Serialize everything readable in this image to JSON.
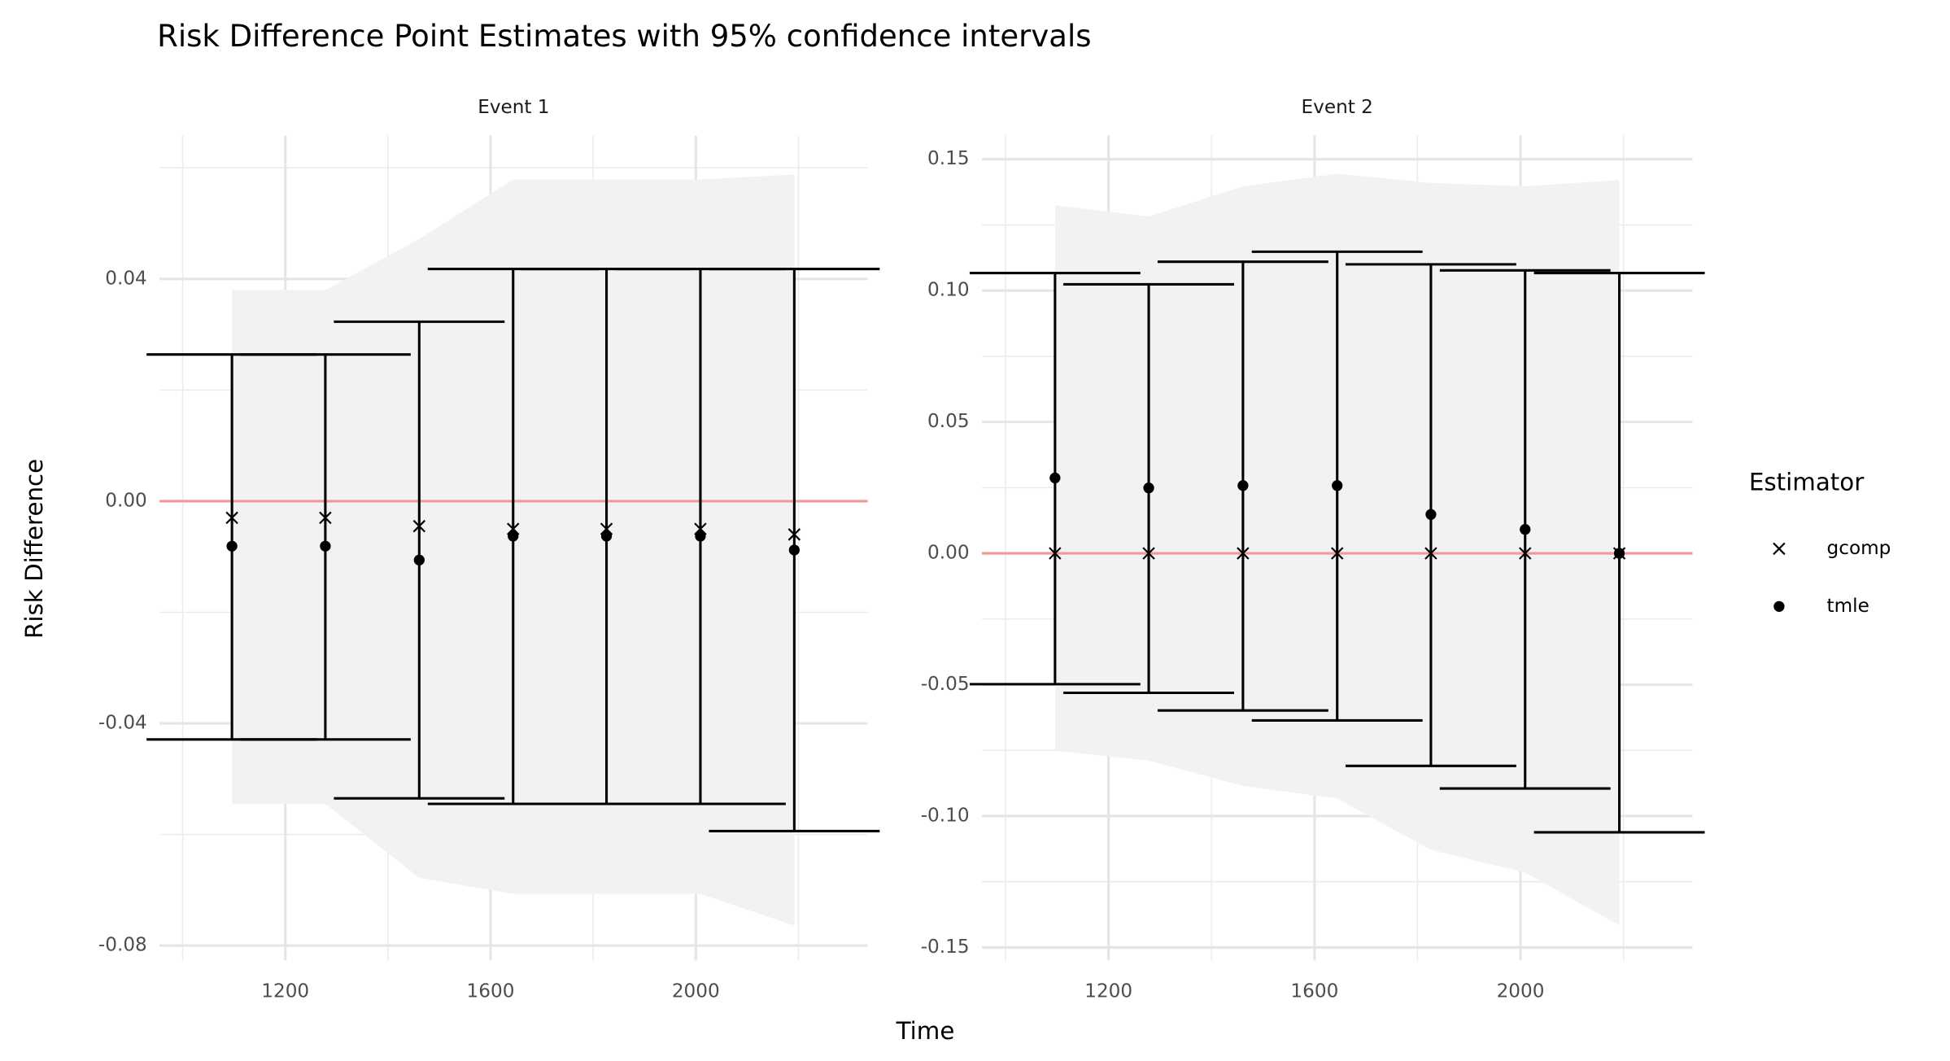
{
  "chart_data": {
    "type": "errorbar",
    "title": "Risk Difference Point Estimates with 95% confidence intervals",
    "x_label": "Time",
    "y_label": "Risk Difference",
    "legend_title": "Estimator",
    "estimators": [
      {
        "name": "gcomp",
        "marker": "cross",
        "color": "#000000"
      },
      {
        "name": "tmle",
        "marker": "dot",
        "color": "#000000"
      }
    ],
    "reference_line": {
      "value": 0,
      "color": "#ef9a96"
    },
    "ribbon_color": "#f2f2f2",
    "grid": true,
    "panels": [
      {
        "title": "Event 1",
        "x": [
          1096,
          1278,
          1461,
          1644,
          1826,
          2009,
          2192
        ],
        "xlim": [
          955,
          2335
        ],
        "xticks": [
          1200,
          1600,
          2000
        ],
        "minor_xticks": [
          1000,
          1400,
          1800,
          2200
        ],
        "ylim": [
          -0.0827,
          0.0658
        ],
        "yticks": [
          -0.08,
          -0.04,
          {
            "value": 0,
            "label": "0.00"
          },
          0.04
        ],
        "minor_yticks": [
          -0.06,
          -0.02,
          0.02,
          0.06
        ],
        "series": [
          {
            "values": [
              -0.003,
              -0.003,
              -0.0045,
              -0.005,
              -0.005,
              -0.005,
              -0.006
            ]
          },
          {
            "values": [
              -0.0081,
              -0.0081,
              -0.0106,
              -0.0063,
              -0.0063,
              -0.0063,
              -0.0088
            ]
          }
        ],
        "ci_upper": [
          0.0264,
          0.0264,
          0.0323,
          0.0418,
          0.0418,
          0.0418,
          0.0418
        ],
        "ci_lower": [
          -0.0429,
          -0.0429,
          -0.0535,
          -0.0545,
          -0.0545,
          -0.0545,
          -0.0594
        ],
        "ribbon_upper": [
          0.038,
          0.038,
          0.0472,
          0.0579,
          0.0579,
          0.0579,
          0.0588
        ],
        "ribbon_lower": [
          -0.0545,
          -0.0545,
          -0.0678,
          -0.0707,
          -0.0707,
          -0.0707,
          -0.0764
        ]
      },
      {
        "title": "Event 2",
        "x": [
          1096,
          1278,
          1461,
          1644,
          1826,
          2009,
          2192
        ],
        "xlim": [
          954,
          2334
        ],
        "xticks": [
          1200,
          1600,
          2000
        ],
        "minor_xticks": [
          1000,
          1400,
          1800,
          2200
        ],
        "ylim": [
          -0.155,
          0.159
        ],
        "yticks": [
          -0.15,
          {
            "value": -0.1,
            "label": "-0.10"
          },
          -0.05,
          {
            "value": 0,
            "label": "0.00"
          },
          0.05,
          {
            "value": 0.1,
            "label": "0.10"
          },
          0.15
        ],
        "minor_yticks": [
          -0.125,
          -0.075,
          -0.025,
          0.025,
          0.075,
          0.125
        ],
        "series": [
          {
            "values": [
              0,
              0,
              0,
              0,
              0,
              0,
              0
            ]
          },
          {
            "values": [
              0.0287,
              0.0249,
              0.0258,
              0.0258,
              0.0148,
              0.0091,
              0
            ]
          }
        ],
        "ci_upper": [
          0.1067,
          0.1024,
          0.111,
          0.1148,
          0.11,
          0.1077,
          0.1067
        ],
        "ci_lower": [
          -0.0498,
          -0.0531,
          -0.0598,
          -0.0636,
          -0.0809,
          -0.0895,
          -0.1062
        ],
        "ribbon_upper": [
          0.1325,
          0.1282,
          0.1397,
          0.1445,
          0.141,
          0.1397,
          0.1421
        ],
        "ribbon_lower": [
          -0.0751,
          -0.0789,
          -0.0885,
          -0.0933,
          -0.1129,
          -0.1215,
          -0.1416
        ]
      }
    ]
  }
}
